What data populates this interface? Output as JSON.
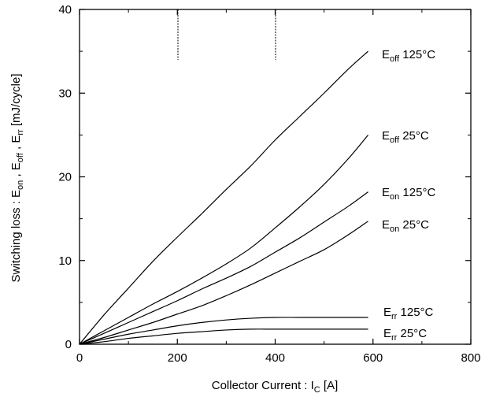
{
  "chart_data": {
    "type": "line",
    "xlabel": {
      "main": "Collector Current : I",
      "sub": "C",
      "tail": " [A]"
    },
    "ylabel": {
      "parts": [
        "Switching loss : E",
        "on",
        " , E",
        "off",
        " , E",
        "rr",
        " [mJ/cycle]"
      ]
    },
    "xlim": [
      0,
      800
    ],
    "ylim": [
      0,
      40
    ],
    "xticks": [
      "0",
      "200",
      "400",
      "600",
      "800"
    ],
    "yticks": [
      "0",
      "10",
      "20",
      "30",
      "40"
    ],
    "xtick_values": [
      0,
      200,
      400,
      600,
      800
    ],
    "ytick_values": [
      0,
      10,
      20,
      30,
      40
    ],
    "grid": false,
    "series": [
      {
        "label_main": "E",
        "label_sub": "off",
        "label_tail": " 125°C",
        "x": [
          0,
          50,
          100,
          150,
          200,
          250,
          300,
          350,
          400,
          450,
          500,
          550,
          590
        ],
        "y": [
          0,
          3.5,
          6.7,
          9.9,
          12.8,
          15.6,
          18.5,
          21.3,
          24.4,
          27.2,
          30.0,
          32.9,
          35.0
        ]
      },
      {
        "label_main": "E",
        "label_sub": "off",
        "label_tail": " 25°C",
        "x": [
          0,
          50,
          100,
          150,
          200,
          250,
          300,
          350,
          400,
          450,
          500,
          550,
          590
        ],
        "y": [
          0,
          1.6,
          3.2,
          4.8,
          6.3,
          7.9,
          9.6,
          11.5,
          13.9,
          16.4,
          19.1,
          22.2,
          25.0
        ]
      },
      {
        "label_main": "E",
        "label_sub": "on",
        "label_tail": " 125°C",
        "x": [
          0,
          50,
          100,
          150,
          200,
          250,
          300,
          350,
          400,
          450,
          500,
          550,
          590
        ],
        "y": [
          0,
          1.3,
          2.6,
          3.9,
          5.2,
          6.6,
          7.9,
          9.3,
          11.0,
          12.7,
          14.6,
          16.5,
          18.2
        ]
      },
      {
        "label_main": "E",
        "label_sub": "on",
        "label_tail": " 25°C",
        "x": [
          0,
          50,
          100,
          150,
          200,
          250,
          300,
          350,
          400,
          450,
          500,
          550,
          590
        ],
        "y": [
          0,
          0.8,
          1.7,
          2.6,
          3.6,
          4.6,
          5.8,
          7.1,
          8.5,
          9.9,
          11.3,
          13.1,
          14.7
        ]
      },
      {
        "label_main": "E",
        "label_sub": "rr",
        "label_tail": " 125°C",
        "x": [
          0,
          50,
          100,
          150,
          200,
          250,
          300,
          350,
          400,
          450,
          500,
          550,
          590
        ],
        "y": [
          0,
          0.6,
          1.2,
          1.7,
          2.2,
          2.6,
          2.9,
          3.1,
          3.2,
          3.2,
          3.2,
          3.2,
          3.2
        ]
      },
      {
        "label_main": "E",
        "label_sub": "rr",
        "label_tail": " 25°C",
        "x": [
          0,
          50,
          100,
          150,
          200,
          250,
          300,
          350,
          400,
          450,
          500,
          550,
          590
        ],
        "y": [
          0,
          0.3,
          0.7,
          1.0,
          1.3,
          1.5,
          1.7,
          1.8,
          1.8,
          1.8,
          1.8,
          1.8,
          1.8
        ]
      }
    ]
  }
}
